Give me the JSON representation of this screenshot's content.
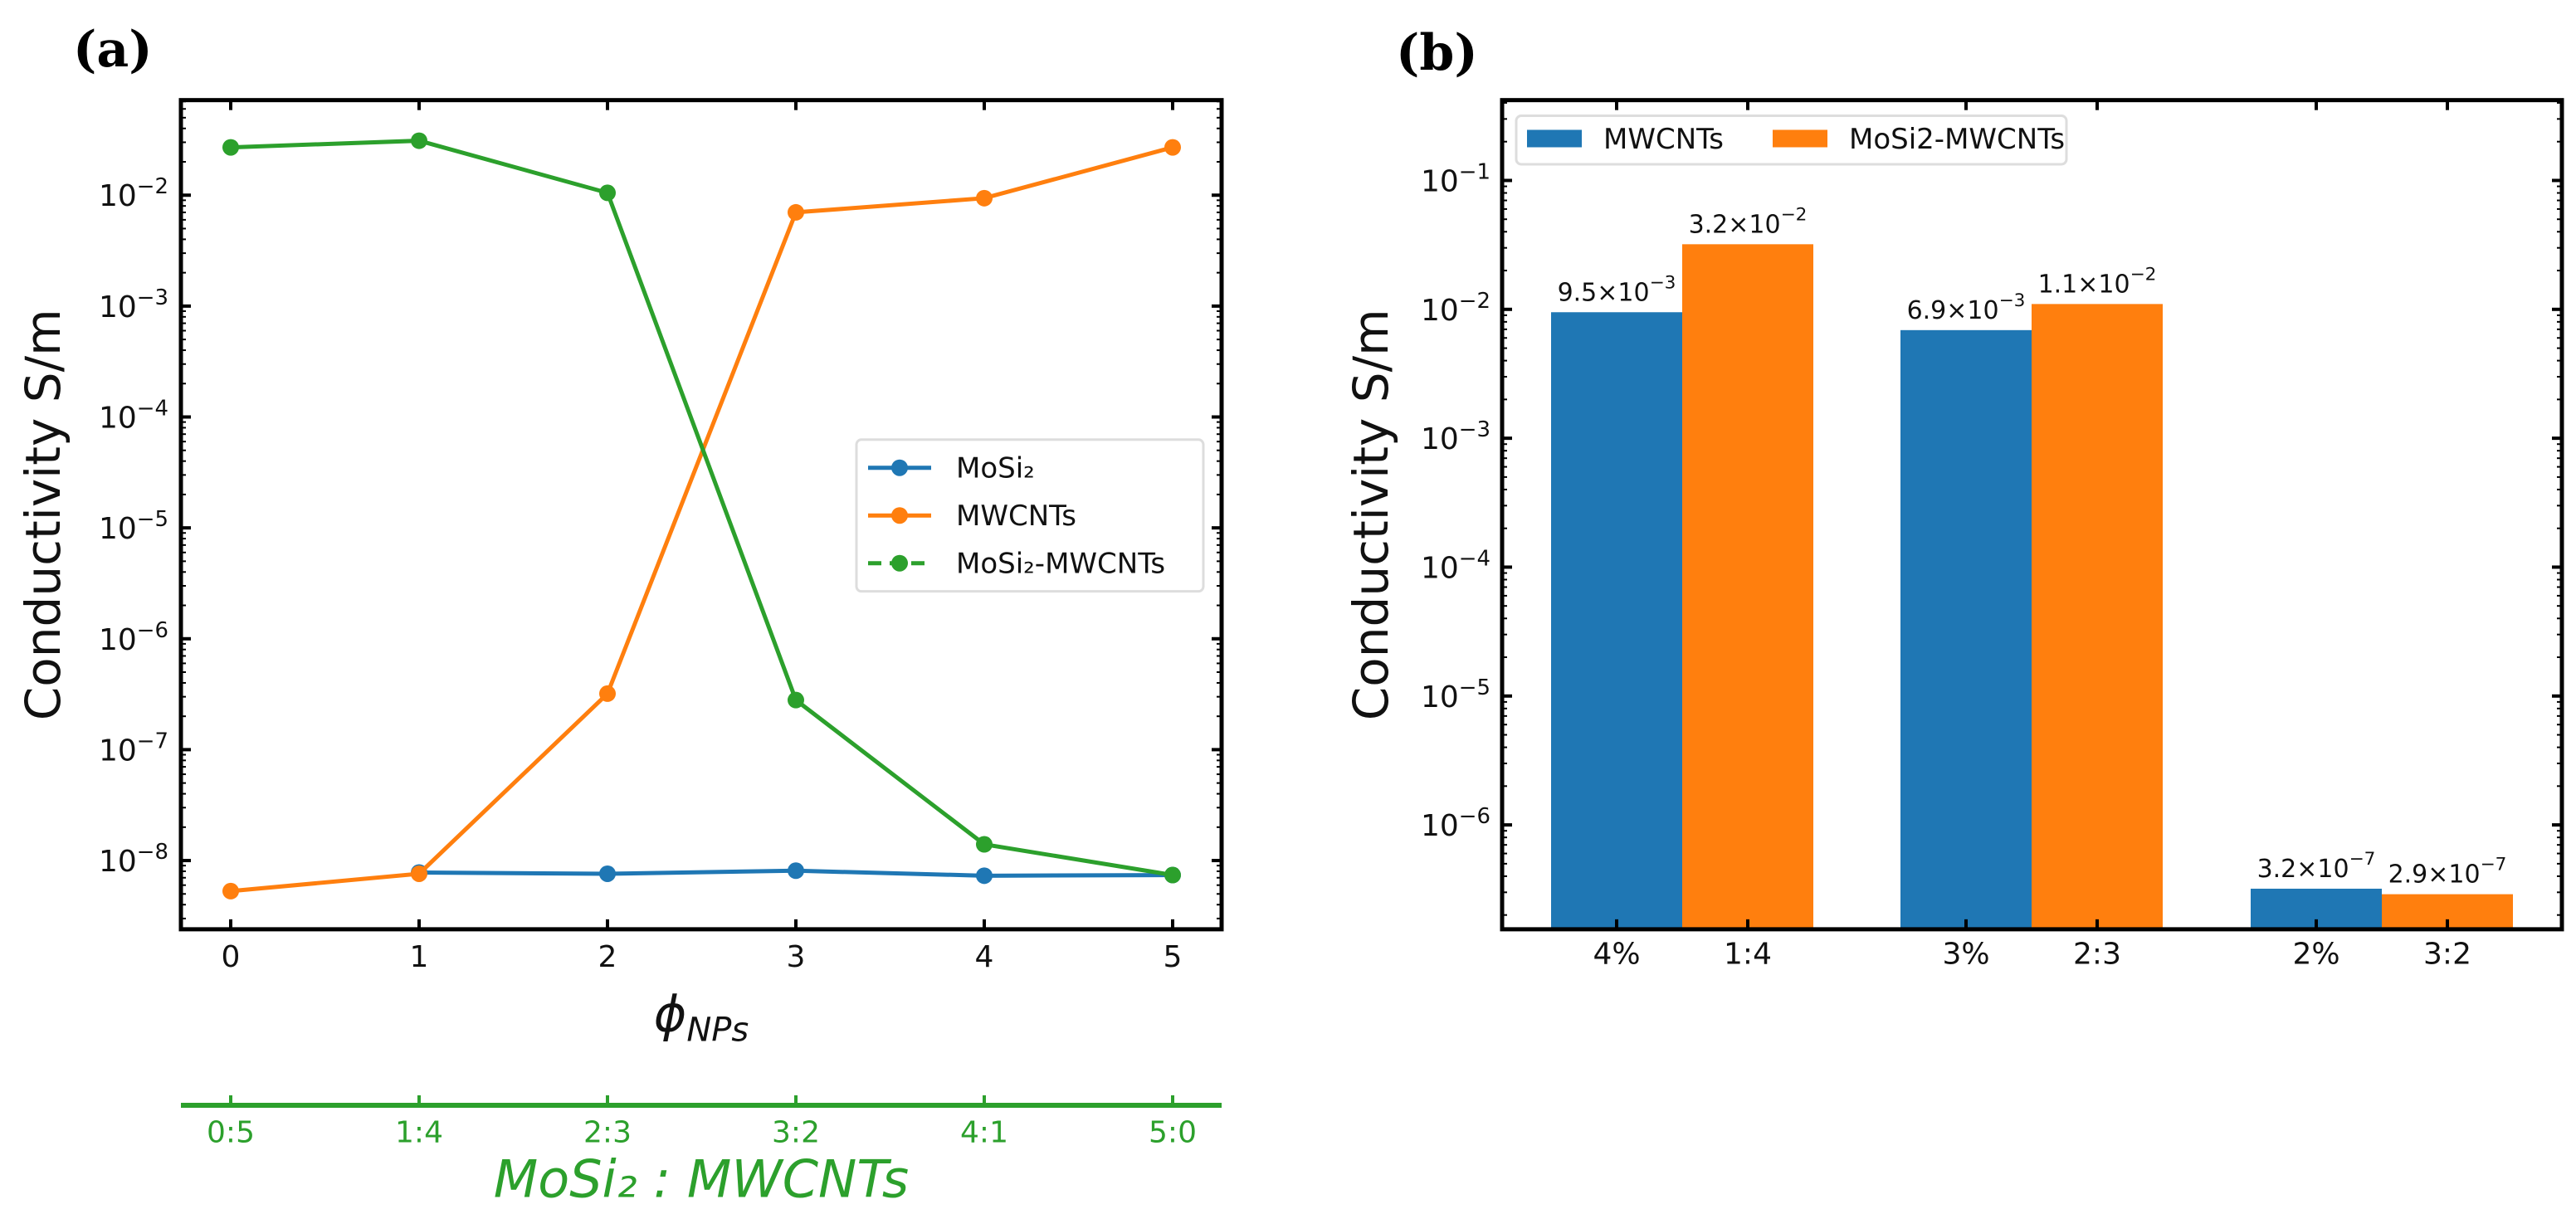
{
  "chart_data": [
    {
      "panel_label": "(a)",
      "type": "line",
      "title": "",
      "x": [
        0,
        1,
        2,
        3,
        4,
        5
      ],
      "x_ticks": [
        "0",
        "1",
        "2",
        "3",
        "4",
        "5"
      ],
      "xlabel_main": "ϕ",
      "xlabel_sub": "NPs",
      "ylabel": "Conductivity S/m",
      "yscale": "log",
      "ylim": [
        2.4e-09,
        0.072
      ],
      "y_tick_base": "10",
      "y_tick_exponents": [
        -8,
        -7,
        -6,
        -5,
        -4,
        -3,
        -2
      ],
      "grid": false,
      "legend_position": "center-right",
      "series": [
        {
          "name": "MoSi₂",
          "color": "#1f77b4",
          "x": [
            1,
            2,
            3,
            4,
            5
          ],
          "values": [
            7.8e-09,
            7.6e-09,
            8.1e-09,
            7.3e-09,
            7.4e-09
          ]
        },
        {
          "name": "MWCNTs",
          "color": "#ff7f0e",
          "x": [
            0,
            1,
            2,
            3,
            4,
            5
          ],
          "values": [
            5.3e-09,
            7.6e-09,
            3.2e-07,
            0.007,
            0.0094,
            0.027
          ]
        },
        {
          "name": "MoSi₂-MWCNTs",
          "color": "#2ca02c",
          "x": [
            0,
            1,
            2,
            3,
            4,
            5
          ],
          "values": [
            0.027,
            0.031,
            0.0105,
            2.8e-07,
            1.4e-08,
            7.4e-09
          ]
        }
      ],
      "secondary_x_axis": {
        "color": "#2ca02c",
        "tick_labels": [
          "0:5",
          "1:4",
          "2:3",
          "3:2",
          "4:1",
          "5:0"
        ],
        "label": "MoSi₂ : MWCNTs"
      }
    },
    {
      "panel_label": "(b)",
      "type": "bar",
      "title": "",
      "ylabel": "Conductivity S/m",
      "yscale": "log",
      "ylim": [
        1.55e-07,
        0.42
      ],
      "y_tick_base": "10",
      "y_tick_exponents": [
        -6,
        -5,
        -4,
        -3,
        -2,
        -1
      ],
      "grid": false,
      "legend_position": "top-left",
      "groups": [
        {
          "labels": [
            "4%",
            "1:4"
          ],
          "values": [
            0.0095,
            0.032
          ],
          "data_labels": [
            {
              "m": "9.5×10",
              "e": "−3"
            },
            {
              "m": "3.2×10",
              "e": "−2"
            }
          ]
        },
        {
          "labels": [
            "3%",
            "2:3"
          ],
          "values": [
            0.0069,
            0.011
          ],
          "data_labels": [
            {
              "m": "6.9×10",
              "e": "−3"
            },
            {
              "m": "1.1×10",
              "e": "−2"
            }
          ]
        },
        {
          "labels": [
            "2%",
            "3:2"
          ],
          "values": [
            3.2e-07,
            2.9e-07
          ],
          "data_labels": [
            {
              "m": "3.2×10",
              "e": "−7"
            },
            {
              "m": "2.9×10",
              "e": "−7"
            }
          ]
        }
      ],
      "series": [
        {
          "name": "MWCNTs",
          "color": "#1f77b4"
        },
        {
          "name": "MoSi2-MWCNTs",
          "color": "#ff7f0e"
        }
      ]
    }
  ]
}
